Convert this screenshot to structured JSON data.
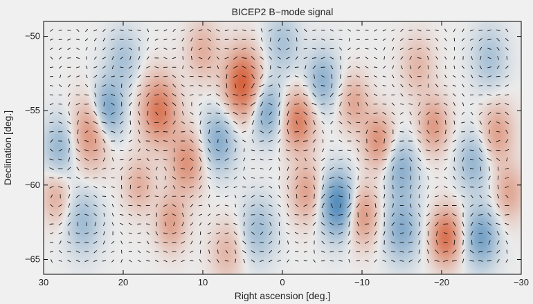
{
  "chart_data": {
    "type": "heatmap",
    "title": "BICEP2 B−mode signal",
    "xlabel": "Right ascension [deg.]",
    "ylabel": "Declination [deg.]",
    "xlim": [
      30,
      -30
    ],
    "ylim": [
      -66,
      -49
    ],
    "x_ticks": [
      30,
      20,
      10,
      0,
      -10,
      -20,
      -30
    ],
    "x_tick_labels": [
      "30",
      "20",
      "10",
      "0",
      "−10",
      "−20",
      "−30"
    ],
    "y_ticks": [
      -50,
      -55,
      -60,
      -65
    ],
    "y_tick_labels": [
      "−50",
      "−55",
      "−60",
      "−65"
    ],
    "grid": false,
    "colors": {
      "positive": "#d6603a",
      "negative": "#3f7fb5",
      "zero": "#ebebeb",
      "vector": "#111111",
      "frame": "#000000"
    },
    "blobs": [
      {
        "ra": 5.0,
        "dec": -53.2,
        "amp": 0.95,
        "s": 1.6
      },
      {
        "ra": 15.5,
        "dec": -55.0,
        "amp": 0.75,
        "s": 1.6
      },
      {
        "ra": 24.0,
        "dec": -56.5,
        "amp": 0.6,
        "s": 1.6
      },
      {
        "ra": 22.0,
        "dec": -55.0,
        "amp": -0.65,
        "s": 1.4
      },
      {
        "ra": 28.0,
        "dec": -57.5,
        "amp": -0.4,
        "s": 1.4
      },
      {
        "ra": 12.0,
        "dec": -58.5,
        "amp": 0.55,
        "s": 1.5
      },
      {
        "ra": -2.0,
        "dec": -55.7,
        "amp": 0.7,
        "s": 1.4
      },
      {
        "ra": 2.0,
        "dec": -55.0,
        "amp": -0.55,
        "s": 1.4
      },
      {
        "ra": 8.0,
        "dec": -57.0,
        "amp": -0.5,
        "s": 1.5
      },
      {
        "ra": -7.0,
        "dec": -61.3,
        "amp": -0.85,
        "s": 1.5
      },
      {
        "ra": -10.0,
        "dec": -62.0,
        "amp": 0.55,
        "s": 1.4
      },
      {
        "ra": -20.5,
        "dec": -63.5,
        "amp": 0.8,
        "s": 1.3
      },
      {
        "ra": -15.0,
        "dec": -63.0,
        "amp": -0.5,
        "s": 1.5
      },
      {
        "ra": -25.0,
        "dec": -63.5,
        "amp": -0.6,
        "s": 1.4
      },
      {
        "ra": -12.0,
        "dec": -57.0,
        "amp": 0.55,
        "s": 1.3
      },
      {
        "ra": -19.0,
        "dec": -56.0,
        "amp": 0.5,
        "s": 1.3
      },
      {
        "ra": -27.0,
        "dec": -56.5,
        "amp": 0.45,
        "s": 1.4
      },
      {
        "ra": -24.0,
        "dec": -58.5,
        "amp": -0.4,
        "s": 1.4
      },
      {
        "ra": -15.0,
        "dec": -59.0,
        "amp": -0.45,
        "s": 1.4
      },
      {
        "ra": -5.0,
        "dec": -53.0,
        "amp": -0.45,
        "s": 1.4
      },
      {
        "ra": -9.0,
        "dec": -54.5,
        "amp": 0.4,
        "s": 1.3
      },
      {
        "ra": 10.0,
        "dec": -51.0,
        "amp": 0.35,
        "s": 1.4
      },
      {
        "ra": 18.0,
        "dec": -60.0,
        "amp": 0.35,
        "s": 1.3
      },
      {
        "ra": 25.0,
        "dec": -62.5,
        "amp": -0.35,
        "s": 1.5
      },
      {
        "ra": 14.0,
        "dec": -62.5,
        "amp": 0.45,
        "s": 1.3
      },
      {
        "ra": 3.0,
        "dec": -63.0,
        "amp": -0.35,
        "s": 1.5
      },
      {
        "ra": -3.0,
        "dec": -60.5,
        "amp": 0.45,
        "s": 1.4
      },
      {
        "ra": 20.0,
        "dec": -51.5,
        "amp": -0.3,
        "s": 1.4
      },
      {
        "ra": -26.0,
        "dec": -51.5,
        "amp": -0.3,
        "s": 1.5
      },
      {
        "ra": -17.0,
        "dec": -52.0,
        "amp": 0.3,
        "s": 1.4
      },
      {
        "ra": 0.0,
        "dec": -50.5,
        "amp": -0.3,
        "s": 1.5
      },
      {
        "ra": 7.0,
        "dec": -64.5,
        "amp": 0.3,
        "s": 1.4
      },
      {
        "ra": -28.5,
        "dec": -60.5,
        "amp": 0.4,
        "s": 1.3
      },
      {
        "ra": 28.5,
        "dec": -60.8,
        "amp": 0.35,
        "s": 1.2
      }
    ]
  }
}
